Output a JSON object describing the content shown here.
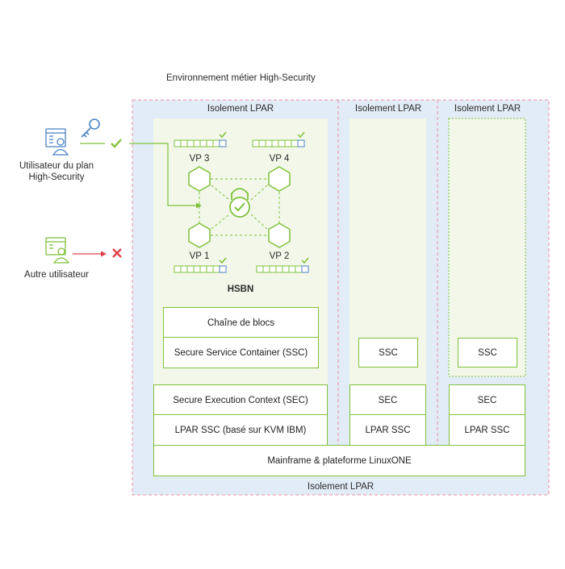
{
  "diagram": {
    "env_title": "Environnement métier High-Security",
    "outer_label": "Isolement LPAR",
    "lpar1": {
      "title": "Isolement LPAR",
      "hsbn_label": "HSBN",
      "vp3": "VP 3",
      "vp4": "VP 4",
      "vp1": "VP 1",
      "vp2": "VP 2",
      "blockchain": "Chaîne de blocs",
      "ssc": "Secure Service Container (SSC)",
      "sec": "Secure Execution Context (SEC)",
      "lpar_ssc": "LPAR SSC (basé sur KVM IBM)"
    },
    "lpar2": {
      "title": "Isolement LPAR",
      "ssc": "SSC",
      "sec": "SEC",
      "lpar_ssc": "LPAR SSC"
    },
    "lpar3": {
      "title": "Isolement LPAR",
      "ssc": "SSC",
      "sec": "SEC",
      "lpar_ssc": "LPAR SSC"
    },
    "mainframe": "Mainframe & plateforme LinuxONE",
    "users": {
      "hs_user_line1": "Utilisateur du plan",
      "hs_user_line2": "High-Security",
      "other_user": "Autre utilisateur"
    },
    "colors": {
      "green": "#7fc13a",
      "light_blue": "#e2ecf6",
      "light_green": "#f2f7e9",
      "pink_dash": "#ee8ea6",
      "blue_icon": "#4a82c4",
      "red": "#e0404a"
    }
  }
}
